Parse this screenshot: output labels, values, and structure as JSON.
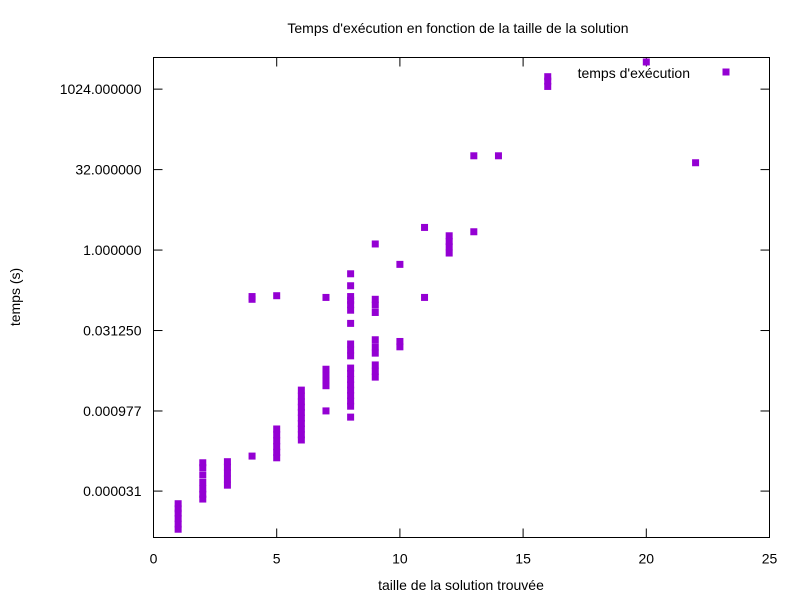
{
  "chart_data": {
    "type": "scatter",
    "title": "Temps d'exécution en fonction de la taille de la solution",
    "xlabel": "taille de la solution trouvée",
    "ylabel": "temps (s)",
    "xlim": [
      0,
      25
    ],
    "ylim": [
      4.2e-06,
      4000
    ],
    "yscale": "log",
    "x_ticks": [
      0,
      5,
      10,
      15,
      20,
      25
    ],
    "x_tick_labels": [
      "0",
      "5",
      "10",
      "15",
      "20",
      "25"
    ],
    "y_ticks": [
      3.1e-05,
      0.000977,
      0.03125,
      1.0,
      32.0,
      1024.0
    ],
    "y_tick_labels": [
      "0.000031",
      "0.000977",
      "0.031250",
      "1.000000",
      "32.000000",
      "1024.000000"
    ],
    "grid": false,
    "legend_position": "top-right",
    "series": [
      {
        "name": "temps d'exécution",
        "color": "#9400d3",
        "marker": "square",
        "x": [
          1,
          1,
          1,
          1,
          1,
          1,
          2,
          2,
          2,
          2,
          2,
          2,
          2,
          3,
          3,
          3,
          3,
          3,
          4,
          4,
          4,
          5,
          5,
          5,
          5,
          5,
          5,
          5,
          6,
          6,
          6,
          6,
          6,
          6,
          6,
          6,
          6,
          6,
          7,
          7,
          7,
          7,
          7,
          7,
          8,
          8,
          8,
          8,
          8,
          8,
          8,
          8,
          8,
          8,
          8,
          8,
          8,
          8,
          8,
          8,
          8,
          8,
          8,
          9,
          9,
          9,
          9,
          9,
          9,
          9,
          9,
          9,
          9,
          10,
          10,
          10,
          11,
          11,
          12,
          12,
          12,
          12,
          13,
          13,
          14,
          16,
          16,
          16,
          20,
          22
        ],
        "y": [
          6e-06,
          7.5e-06,
          9.5e-06,
          1.2e-05,
          1.45e-05,
          1.8e-05,
          2.2e-05,
          2.7e-05,
          3.4e-05,
          4.5e-05,
          6.2e-05,
          8.5e-05,
          0.000105,
          4e-05,
          5.2e-05,
          6.8e-05,
          8.7e-05,
          0.00011,
          0.00014,
          0.12,
          0.135,
          0.00013,
          0.000165,
          0.00021,
          0.00027,
          0.00035,
          0.00045,
          0.14,
          0.00028,
          0.00035,
          0.00045,
          0.00057,
          0.00072,
          0.00092,
          0.00115,
          0.00145,
          0.00185,
          0.0024,
          0.00098,
          0.0029,
          0.0036,
          0.0046,
          0.0059,
          0.13,
          0.00075,
          0.0012,
          0.0015,
          0.0019,
          0.0024,
          0.003,
          0.0038,
          0.0049,
          0.0062,
          0.0105,
          0.0135,
          0.0175,
          0.0425,
          0.075,
          0.095,
          0.115,
          0.135,
          0.215,
          0.36,
          0.0042,
          0.0054,
          0.0071,
          0.0118,
          0.0155,
          0.021,
          0.068,
          0.093,
          0.12,
          1.3,
          0.0155,
          0.0195,
          0.54,
          0.13,
          2.65,
          0.88,
          1.15,
          1.45,
          1.85,
          2.2,
          58,
          58,
          1150,
          1450,
          1750,
          3300,
          43
        ]
      }
    ]
  }
}
